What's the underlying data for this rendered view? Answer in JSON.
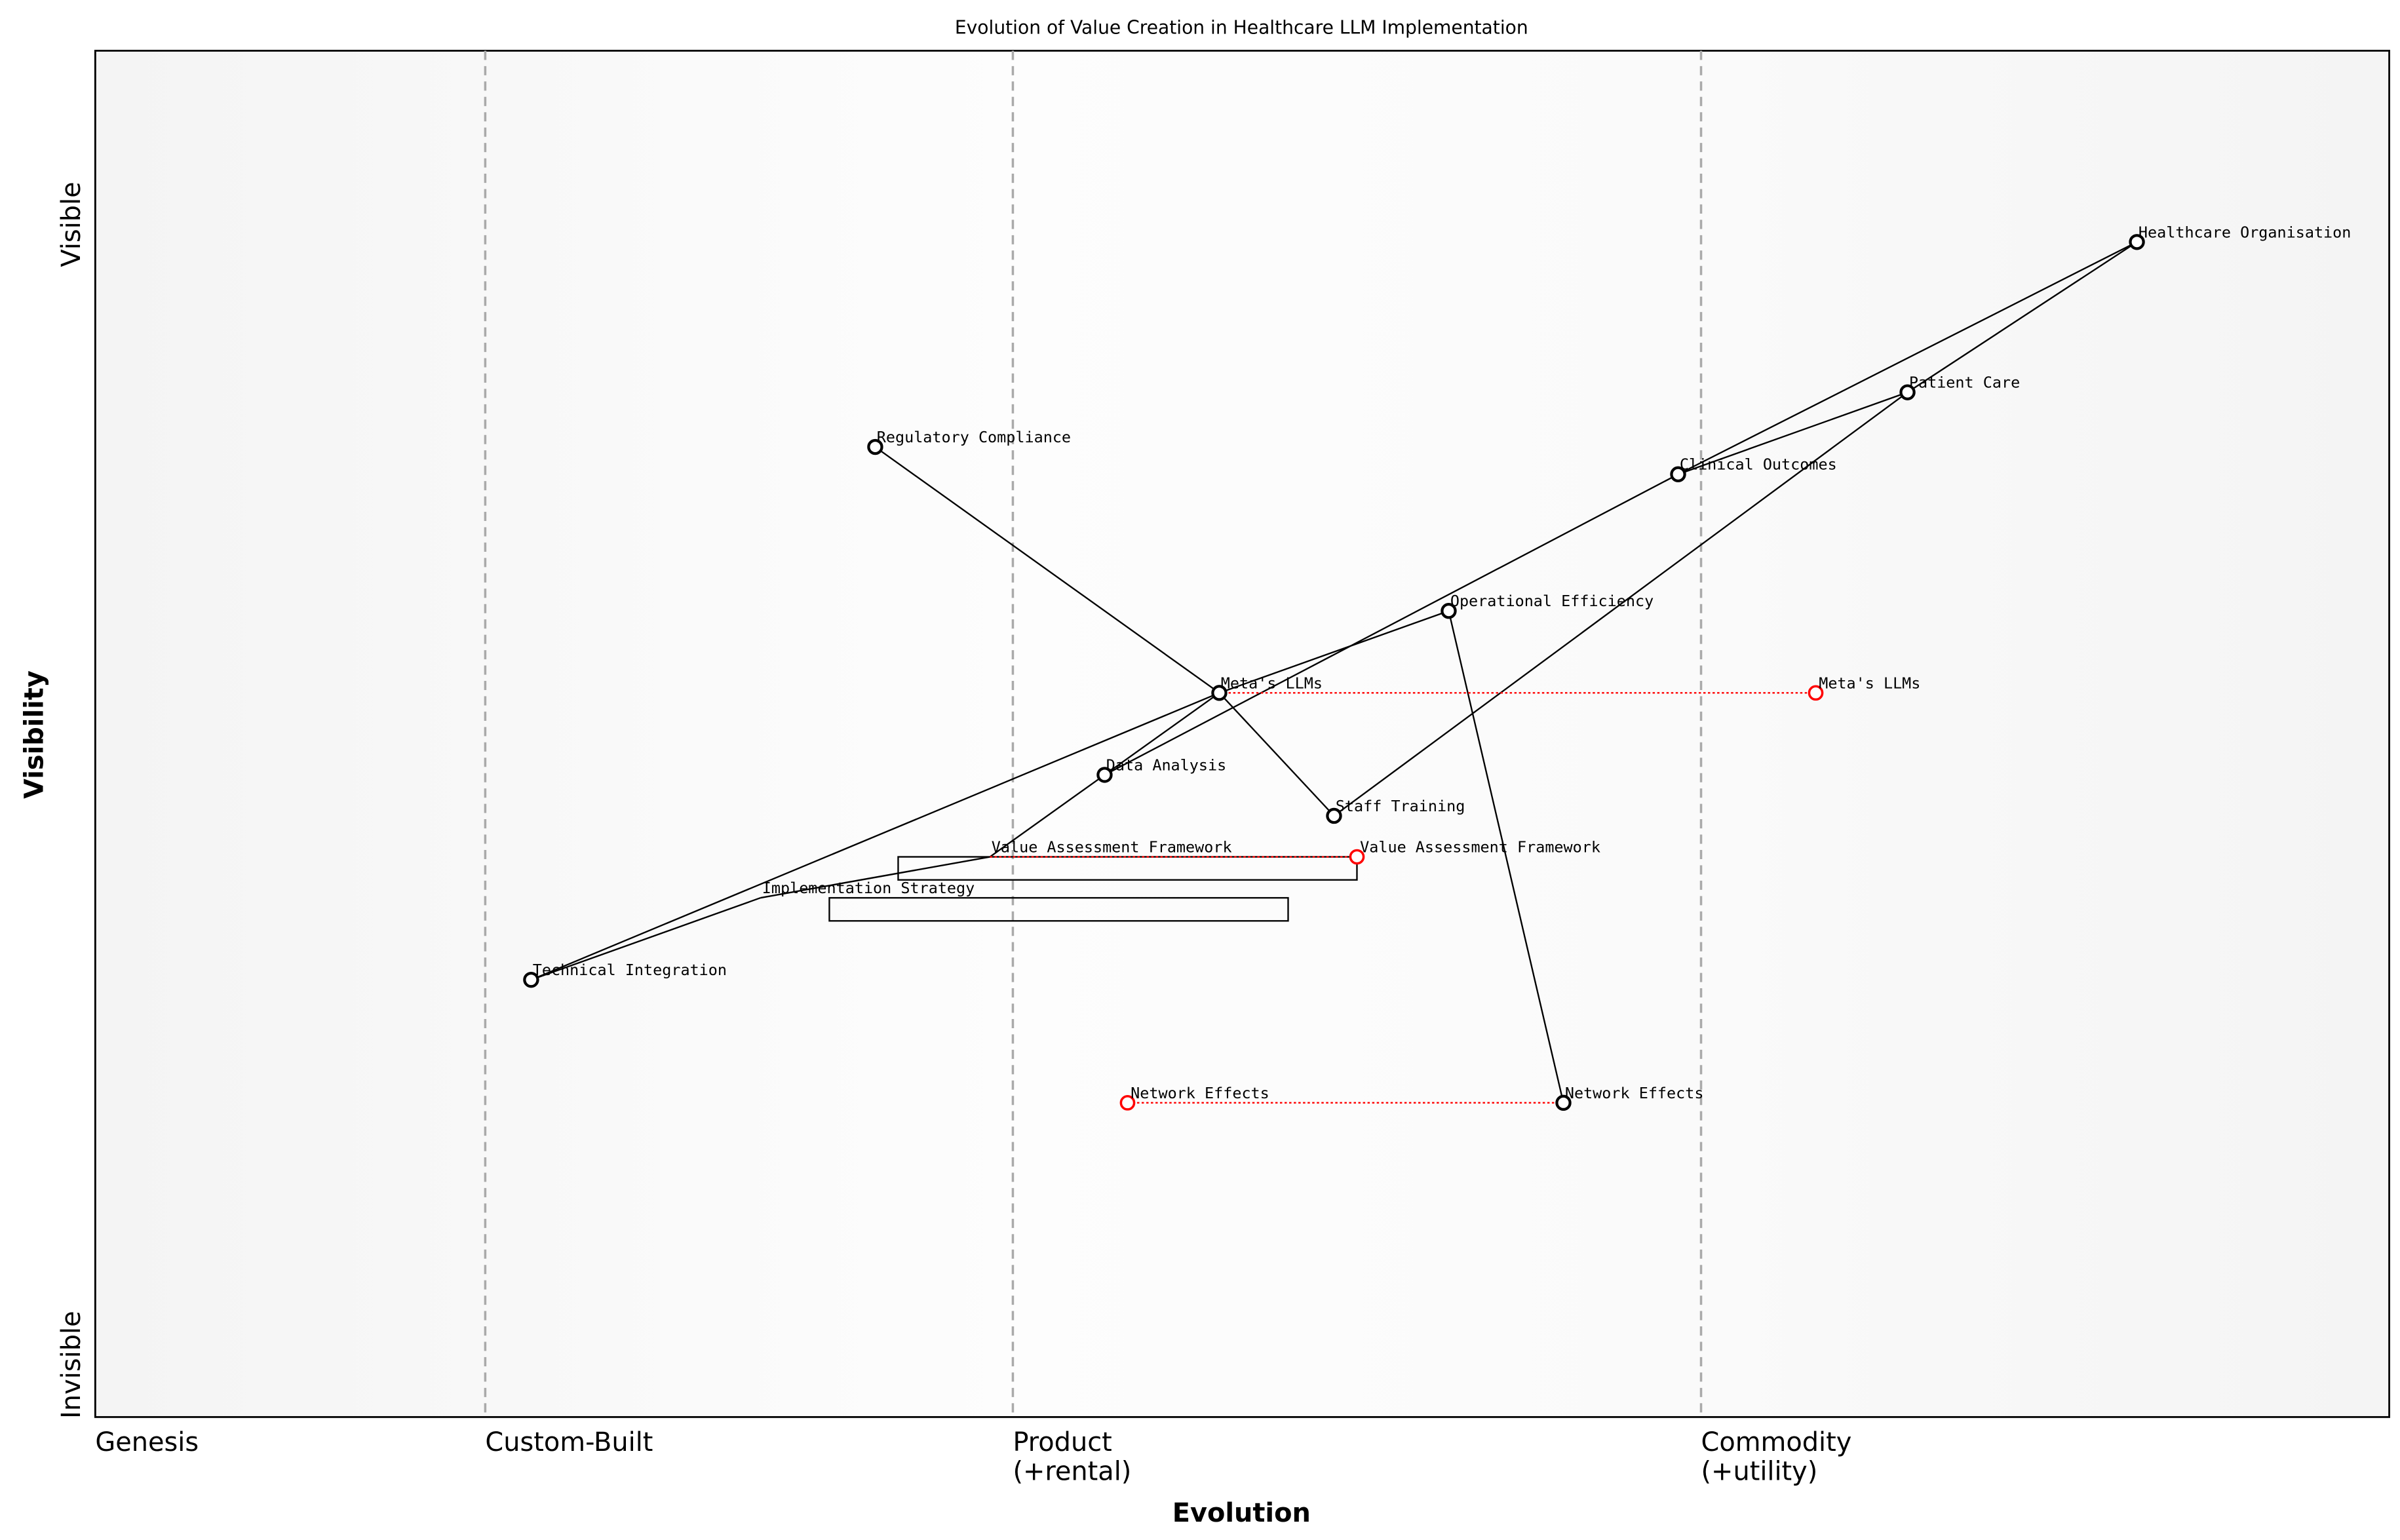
{
  "title": "Evolution of Value Creation in Healthcare LLM Implementation",
  "x_axis": {
    "label": "Evolution",
    "stages": [
      {
        "label": [
          "Genesis"
        ],
        "evolution": 0.0
      },
      {
        "label": [
          "Custom-Built"
        ],
        "evolution": 0.17
      },
      {
        "label": [
          "Product",
          "(+rental)"
        ],
        "evolution": 0.4
      },
      {
        "label": [
          "Commodity",
          "(+utility)"
        ],
        "evolution": 0.7
      }
    ]
  },
  "y_axis": {
    "label": "Visibility",
    "top_label": "Visible",
    "bottom_label": "Invisible"
  },
  "colors": {
    "component": "#000000",
    "evolved": "#ff0000",
    "divider": "#aaaaaa"
  },
  "components": [
    {
      "id": "ho",
      "name": "Healthcare Organisation",
      "evolution": 0.89,
      "visibility": 0.86
    },
    {
      "id": "pc",
      "name": "Patient Care",
      "evolution": 0.79,
      "visibility": 0.75
    },
    {
      "id": "co",
      "name": "Clinical Outcomes",
      "evolution": 0.69,
      "visibility": 0.69
    },
    {
      "id": "rc",
      "name": "Regulatory Compliance",
      "evolution": 0.34,
      "visibility": 0.71
    },
    {
      "id": "oe",
      "name": "Operational Efficiency",
      "evolution": 0.59,
      "visibility": 0.59
    },
    {
      "id": "ml",
      "name": "Meta's LLMs",
      "evolution": 0.49,
      "visibility": 0.53
    },
    {
      "id": "da",
      "name": "Data Analysis",
      "evolution": 0.44,
      "visibility": 0.47
    },
    {
      "id": "st",
      "name": "Staff Training",
      "evolution": 0.54,
      "visibility": 0.44
    },
    {
      "id": "vaf",
      "name": "Value Assessment Framework",
      "evolution": 0.39,
      "visibility": 0.41,
      "hidden_marker": true
    },
    {
      "id": "is",
      "name": "Implementation Strategy",
      "evolution": 0.29,
      "visibility": 0.38,
      "hidden_marker": true
    },
    {
      "id": "ti",
      "name": "Technical Integration",
      "evolution": 0.19,
      "visibility": 0.32
    },
    {
      "id": "ne",
      "name": "Network Effects",
      "evolution": 0.64,
      "visibility": 0.23
    }
  ],
  "evolved": [
    {
      "from": "ml",
      "name": "Meta's LLMs",
      "evolution": 0.75
    },
    {
      "from": "vaf",
      "name": "Value Assessment Framework",
      "evolution": 0.55
    },
    {
      "from": "ne",
      "name": "Network Effects",
      "evolution": 0.45
    }
  ],
  "links": [
    [
      "ho",
      "co"
    ],
    [
      "ho",
      "pc"
    ],
    [
      "pc",
      "co"
    ],
    [
      "pc",
      "st"
    ],
    [
      "co",
      "da"
    ],
    [
      "ml",
      "rc"
    ],
    [
      "ml",
      "st"
    ],
    [
      "ml",
      "da"
    ],
    [
      "ml",
      "oe"
    ],
    [
      "ml",
      "ti"
    ],
    [
      "oe",
      "ne"
    ],
    [
      "da",
      "vaf"
    ],
    [
      "vaf",
      "is"
    ],
    [
      "is",
      "ti"
    ]
  ],
  "pipelines": [
    {
      "start": 0.35,
      "end": 0.55,
      "visibility": 0.41
    },
    {
      "start": 0.32,
      "end": 0.52,
      "visibility": 0.38
    }
  ]
}
